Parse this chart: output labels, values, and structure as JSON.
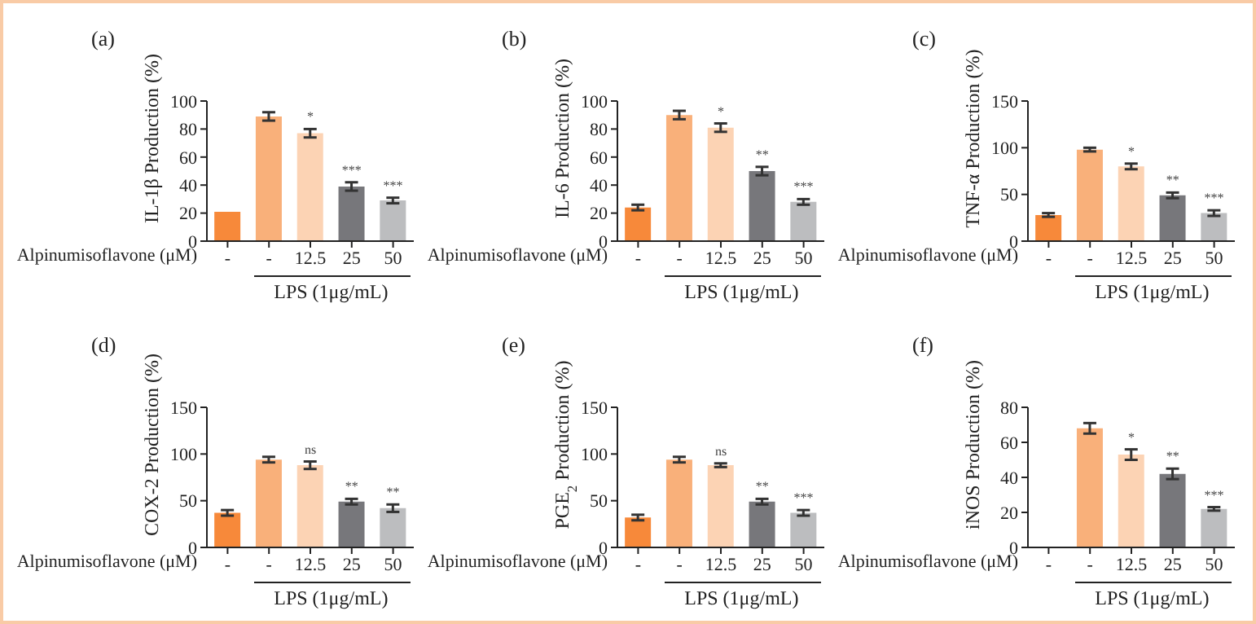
{
  "chart_data": [
    {
      "type": "bar",
      "title": "(a)",
      "ylabel": "IL-1β Production (%)",
      "xlabel": "Alpinumisoflavone (μM)",
      "categories": [
        "-",
        "-",
        "12.5",
        "25",
        "50"
      ],
      "values": [
        21,
        89,
        77,
        39,
        29
      ],
      "errors": [
        null,
        3,
        3,
        3,
        2
      ],
      "colors": [
        "#f7893a",
        "#f9b07a",
        "#fcd3b4",
        "#77777b",
        "#bcbdbf"
      ],
      "ylim": [
        0,
        100
      ],
      "yticks": [
        0,
        20,
        40,
        60,
        80,
        100
      ],
      "annotations": [
        "LPS (1μg/mL)",
        {
          "text": "*",
          "x": "12.5",
          "y": 80
        },
        {
          "text": "***",
          "x": "25",
          "y": 42
        },
        {
          "text": "***",
          "x": "50",
          "y": 31
        }
      ]
    },
    {
      "type": "bar",
      "title": "(b)",
      "ylabel": "IL-6 Production (%)",
      "xlabel": "Alpinumisoflavone (μM)",
      "categories": [
        "-",
        "-",
        "12.5",
        "25",
        "50"
      ],
      "values": [
        24,
        90,
        81,
        50,
        28
      ],
      "errors": [
        2,
        3,
        3,
        3,
        2
      ],
      "colors": [
        "#f7893a",
        "#f9b07a",
        "#fcd3b4",
        "#77777b",
        "#bcbdbf"
      ],
      "ylim": [
        0,
        100
      ],
      "yticks": [
        0,
        20,
        40,
        60,
        80,
        100
      ],
      "annotations": [
        "LPS (1μg/mL)",
        {
          "text": "*",
          "x": "12.5",
          "y": 84
        },
        {
          "text": "**",
          "x": "25",
          "y": 53
        },
        {
          "text": "***",
          "x": "50",
          "y": 30
        }
      ]
    },
    {
      "type": "bar",
      "title": "(c)",
      "ylabel": "TNF-α Production (%)",
      "xlabel": "Alpinumisoflavone (μM)",
      "categories": [
        "-",
        "-",
        "12.5",
        "25",
        "50"
      ],
      "values": [
        28,
        98,
        80,
        49,
        30
      ],
      "errors": [
        2,
        2,
        3,
        3,
        3
      ],
      "colors": [
        "#f7893a",
        "#f9b07a",
        "#fcd3b4",
        "#77777b",
        "#bcbdbf"
      ],
      "ylim": [
        0,
        150
      ],
      "yticks": [
        0,
        50,
        100,
        150
      ],
      "annotations": [
        "LPS (1μg/mL)",
        {
          "text": "*",
          "x": "12.5",
          "y": 83
        },
        {
          "text": "**",
          "x": "25",
          "y": 52
        },
        {
          "text": "***",
          "x": "50",
          "y": 33
        }
      ]
    },
    {
      "type": "bar",
      "title": "(d)",
      "ylabel": "COX-2 Production (%)",
      "xlabel": "Alpinumisoflavone (μM)",
      "categories": [
        "-",
        "-",
        "12.5",
        "25",
        "50"
      ],
      "values": [
        37,
        94,
        88,
        49,
        42
      ],
      "errors": [
        3,
        3,
        4,
        3,
        4
      ],
      "colors": [
        "#f7893a",
        "#f9b07a",
        "#fcd3b4",
        "#77777b",
        "#bcbdbf"
      ],
      "ylim": [
        0,
        150
      ],
      "yticks": [
        0,
        50,
        100,
        150
      ],
      "annotations": [
        "LPS (1μg/mL)",
        {
          "text": "ns",
          "x": "12.5",
          "y": 92
        },
        {
          "text": "**",
          "x": "25",
          "y": 52
        },
        {
          "text": "**",
          "x": "50",
          "y": 46
        }
      ]
    },
    {
      "type": "bar",
      "title": "(e)",
      "ylabel": "PGE$_{2}$ Production (%)",
      "xlabel": "Alpinumisoflavone (μM)",
      "categories": [
        "-",
        "-",
        "12.5",
        "25",
        "50"
      ],
      "values": [
        32,
        94,
        88,
        49,
        37
      ],
      "errors": [
        3,
        3,
        2,
        3,
        3
      ],
      "colors": [
        "#f7893a",
        "#f9b07a",
        "#fcd3b4",
        "#77777b",
        "#bcbdbf"
      ],
      "ylim": [
        0,
        150
      ],
      "yticks": [
        0,
        50,
        100,
        150
      ],
      "annotations": [
        "LPS (1μg/mL)",
        {
          "text": "ns",
          "x": "12.5",
          "y": 90
        },
        {
          "text": "**",
          "x": "25",
          "y": 52
        },
        {
          "text": "***",
          "x": "50",
          "y": 40
        }
      ]
    },
    {
      "type": "bar",
      "title": "(f)",
      "ylabel": "iNOS Production (%)",
      "xlabel": "Alpinumisoflavone (μM)",
      "categories": [
        "-",
        "-",
        "12.5",
        "25",
        "50"
      ],
      "values": [
        null,
        68,
        53,
        42,
        22
      ],
      "errors": [
        null,
        3,
        3,
        3,
        1
      ],
      "colors": [
        "#f7893a",
        "#f9b07a",
        "#fcd3b4",
        "#77777b",
        "#bcbdbf"
      ],
      "ylim": [
        0,
        80
      ],
      "yticks": [
        0,
        20,
        40,
        60,
        80
      ],
      "annotations": [
        "LPS (1μg/mL)",
        {
          "text": "*",
          "x": "12.5",
          "y": 56
        },
        {
          "text": "**",
          "x": "25",
          "y": 45
        },
        {
          "text": "***",
          "x": "50",
          "y": 23
        }
      ]
    }
  ]
}
